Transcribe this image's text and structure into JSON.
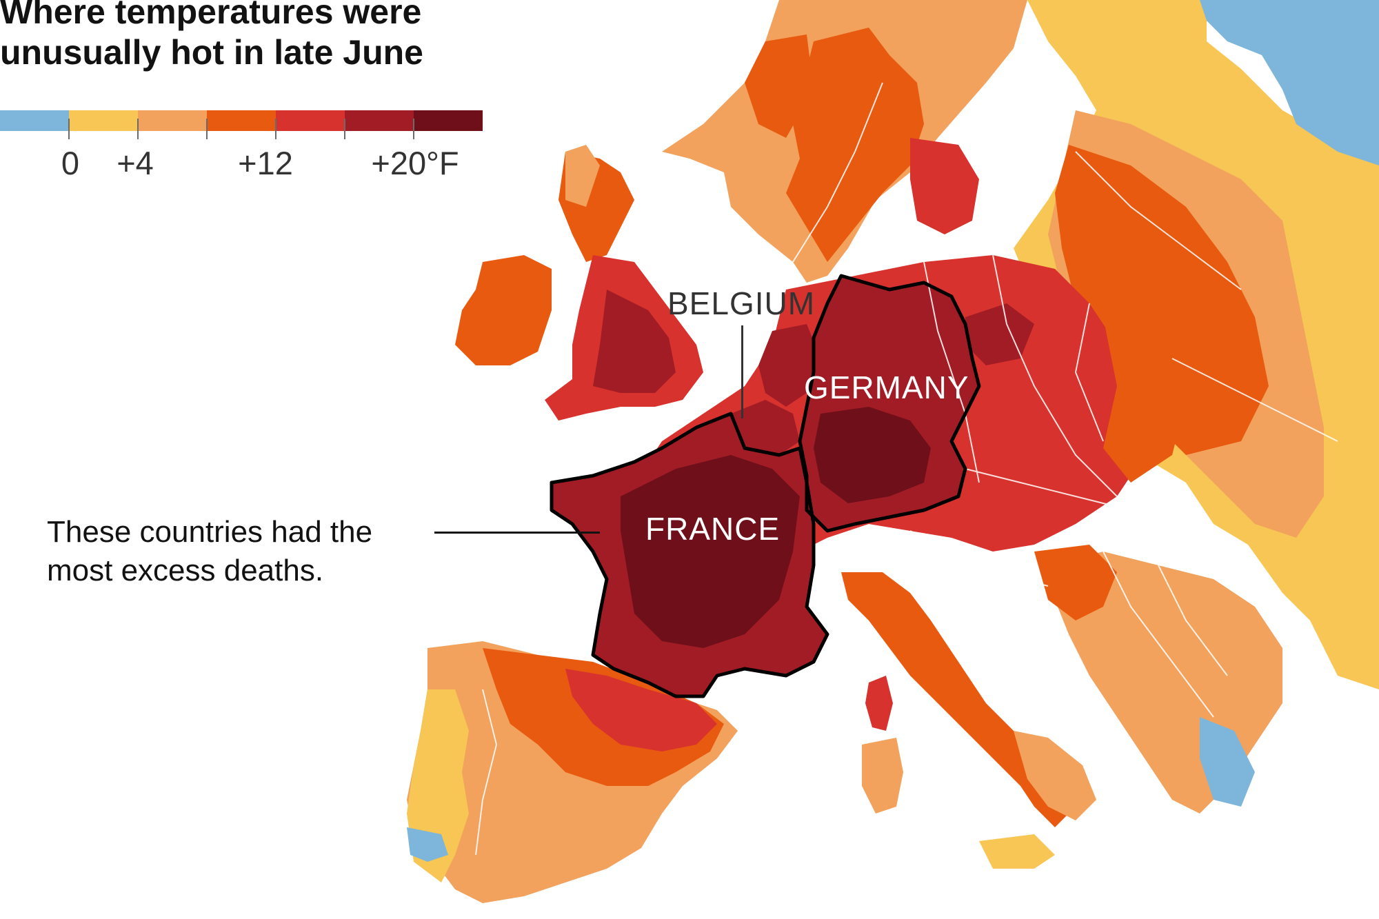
{
  "title": "Where temperatures were unusually hot in late June",
  "legend": {
    "colors": [
      "#7db6da",
      "#f7c654",
      "#f2a25c",
      "#e85a10",
      "#d8322e",
      "#a21c25",
      "#6e0f1a"
    ],
    "labels": [
      "0",
      "+4",
      "+12",
      "+20°F"
    ]
  },
  "map_labels": {
    "belgium": "BELGIUM",
    "germany": "GERMANY",
    "france": "FRANCE"
  },
  "annotation": "These countries had the most excess deaths.",
  "colors": {
    "sea": "#ffffff",
    "border": "#ffffff",
    "highlight_outline": "#000000"
  }
}
